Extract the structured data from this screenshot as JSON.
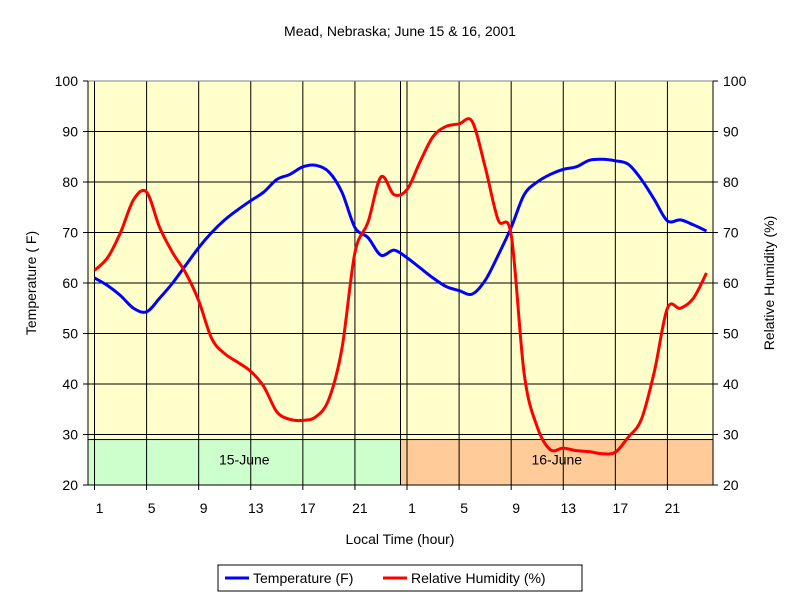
{
  "chart_data": {
    "type": "line",
    "title": "Mead, Nebraska; June 15 & 16, 2001",
    "xlabel": "Local Time (hour)",
    "ylabel_left": "Temperature ( F)",
    "ylabel_right": "Relative Humidity (%)",
    "ylim": [
      20,
      100
    ],
    "yticks": [
      20,
      30,
      40,
      50,
      60,
      70,
      80,
      90,
      100
    ],
    "x_tick_labels": [
      "1",
      "5",
      "9",
      "13",
      "17",
      "21",
      "1",
      "5",
      "9",
      "13",
      "17",
      "21"
    ],
    "xlim": [
      0.5,
      48.5
    ],
    "grid": true,
    "legend_position": "bottom",
    "day_bands": [
      {
        "label": "15-June",
        "x_start": 0.5,
        "x_end": 24.5,
        "color": "#ccffcc"
      },
      {
        "label": "16-June",
        "x_start": 24.5,
        "x_end": 48.5,
        "color": "#ffcc99"
      }
    ],
    "series": [
      {
        "name": "Temperature (F)",
        "color": "#0000ff",
        "x": [
          1,
          2,
          3,
          4,
          5,
          6,
          7,
          8,
          9,
          10,
          11,
          12,
          13,
          14,
          15,
          16,
          17,
          18,
          19,
          20,
          21,
          22,
          23,
          24,
          25,
          26,
          27,
          28,
          29,
          30,
          31,
          32,
          33,
          34,
          35,
          36,
          37,
          38,
          39,
          40,
          41,
          42,
          43,
          44,
          45,
          46,
          47,
          48
        ],
        "values": [
          61,
          59.5,
          57.5,
          55,
          54.3,
          57,
          60,
          63.5,
          67,
          70,
          72.5,
          74.5,
          76.3,
          78,
          80.5,
          81.5,
          83,
          83.3,
          82,
          78,
          71,
          69,
          65.5,
          66.5,
          65,
          63,
          61,
          59.3,
          58.5,
          57.8,
          60.5,
          65.5,
          71,
          77.5,
          80,
          81.5,
          82.5,
          83,
          84.3,
          84.5,
          84.2,
          83.5,
          80.5,
          76.5,
          72.3,
          72.5,
          71.5,
          70.3
        ]
      },
      {
        "name": "Relative Humidity (%)",
        "color": "#ff0000",
        "x": [
          1,
          2,
          3,
          4,
          5,
          6,
          7,
          8,
          9,
          10,
          11,
          12,
          13,
          14,
          15,
          16,
          17,
          18,
          19,
          20,
          21,
          22,
          23,
          24,
          25,
          26,
          27,
          28,
          29,
          30,
          31,
          32,
          33,
          34,
          35,
          36,
          37,
          38,
          39,
          40,
          41,
          42,
          43,
          44,
          45,
          46,
          47,
          48
        ],
        "values": [
          62.5,
          65,
          70,
          76.5,
          78,
          71,
          66,
          62,
          56.5,
          49,
          46,
          44.3,
          42.5,
          39.5,
          34.5,
          33,
          32.8,
          33.5,
          37,
          47,
          66,
          72,
          81,
          77.5,
          78.5,
          84,
          89,
          91,
          91.5,
          92,
          83,
          72.5,
          69.5,
          42,
          31.5,
          27,
          27.3,
          26.8,
          26.6,
          26.2,
          26.5,
          29.5,
          33,
          42.5,
          55,
          55,
          57,
          62
        ]
      }
    ]
  }
}
